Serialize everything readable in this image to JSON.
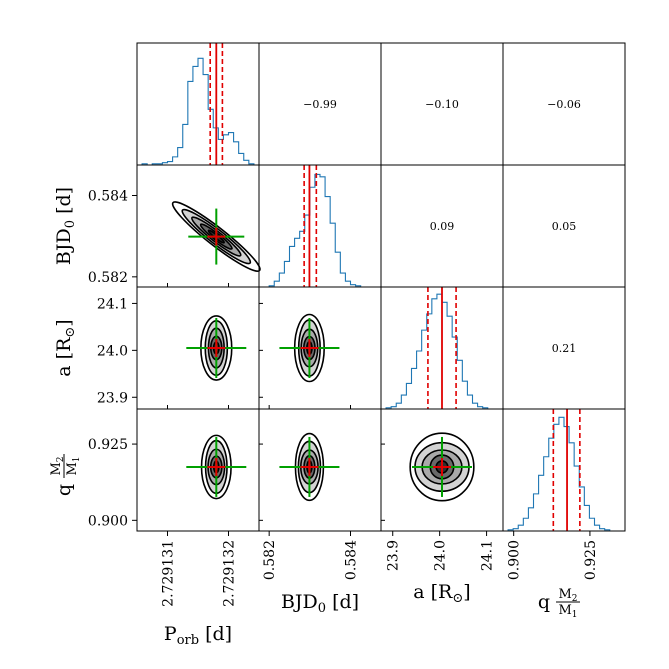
{
  "chart_data": {
    "type": "corner",
    "parameters": [
      {
        "name": "period",
        "label": "P",
        "label_sub": "orb",
        "label_unit": "[d]",
        "range": [
          2.7291305,
          2.7291325
        ],
        "ticks": [
          {
            "value": 2.729131,
            "label": "2.729131"
          },
          {
            "value": 2.729132,
            "label": "2.729132"
          }
        ],
        "median": 2.7291318,
        "q16": 2.7291317,
        "q84": 2.7291319,
        "hist": [
          0.0,
          0.01,
          0.0,
          0.01,
          0.01,
          0.02,
          0.03,
          0.07,
          0.15,
          0.35,
          0.72,
          0.85,
          0.92,
          0.78,
          0.48,
          0.32,
          0.22,
          0.26,
          0.28,
          0.2,
          0.1,
          0.04,
          0.01,
          0.0
        ]
      },
      {
        "name": "bjd0",
        "label": "BJD",
        "label_sub": "0",
        "label_unit": "[d]",
        "range": [
          0.58175,
          0.58475
        ],
        "ticks": [
          {
            "value": 0.582,
            "label": "0.582"
          },
          {
            "value": 0.584,
            "label": "0.584"
          }
        ],
        "median": 0.58299,
        "q16": 0.58286,
        "q84": 0.58316,
        "hist": [
          0.0,
          0.0,
          0.01,
          0.05,
          0.12,
          0.22,
          0.35,
          0.42,
          0.48,
          0.62,
          0.86,
          0.97,
          0.95,
          0.78,
          0.55,
          0.3,
          0.12,
          0.05,
          0.02,
          0.01,
          0.0,
          0.0,
          0.0,
          0.0
        ]
      },
      {
        "name": "semimajor",
        "label": "a",
        "label_unit": "[R",
        "label_unit_sub": "⊙",
        "label_unit_close": "]",
        "range": [
          23.875,
          24.135
        ],
        "ticks": [
          {
            "value": 23.9,
            "label": "23.9"
          },
          {
            "value": 24.0,
            "label": "24.0"
          },
          {
            "value": 24.1,
            "label": "24.1"
          }
        ],
        "median": 24.005,
        "q16": 23.975,
        "q84": 24.035,
        "hist": [
          0.0,
          0.01,
          0.02,
          0.05,
          0.12,
          0.22,
          0.35,
          0.5,
          0.68,
          0.82,
          0.95,
          0.99,
          0.92,
          0.8,
          0.62,
          0.42,
          0.24,
          0.12,
          0.05,
          0.02,
          0.01,
          0.0,
          0.0,
          0.0
        ]
      },
      {
        "name": "massratio",
        "label": "q",
        "frac_num": "M",
        "frac_num_sub": "2",
        "frac_den": "M",
        "frac_den_sub": "1",
        "range": [
          0.8965,
          0.9365
        ],
        "ticks": [
          {
            "value": 0.9,
            "label": "0.900"
          },
          {
            "value": 0.925,
            "label": "0.925"
          }
        ],
        "median": 0.9175,
        "q16": 0.913,
        "q84": 0.9217,
        "hist": [
          0.0,
          0.01,
          0.02,
          0.05,
          0.11,
          0.2,
          0.32,
          0.48,
          0.64,
          0.8,
          0.92,
          0.98,
          0.9,
          0.76,
          0.56,
          0.38,
          0.22,
          0.11,
          0.05,
          0.02,
          0.01,
          0.0,
          0.0,
          0.0
        ]
      }
    ],
    "correlations": [
      {
        "row": 0,
        "col": 1,
        "value": "−0.99"
      },
      {
        "row": 0,
        "col": 2,
        "value": "−0.10"
      },
      {
        "row": 0,
        "col": 3,
        "value": "−0.06"
      },
      {
        "row": 1,
        "col": 2,
        "value": "0.09"
      },
      {
        "row": 1,
        "col": 3,
        "value": "0.05"
      },
      {
        "row": 2,
        "col": 3,
        "value": "0.21"
      }
    ],
    "contour_levels": 4,
    "colors": {
      "histogram": "#1f77b4",
      "quantile_lines": "#e00000",
      "median_line": "#e00000",
      "cross_h": "#00a000",
      "cross_v": "#00a000",
      "cross_center": "#e00000",
      "fills": [
        "#ffffff",
        "#d3d3d3",
        "#a9a9a9",
        "#696969",
        "#2f2f2f"
      ],
      "contour": "#000000"
    }
  }
}
